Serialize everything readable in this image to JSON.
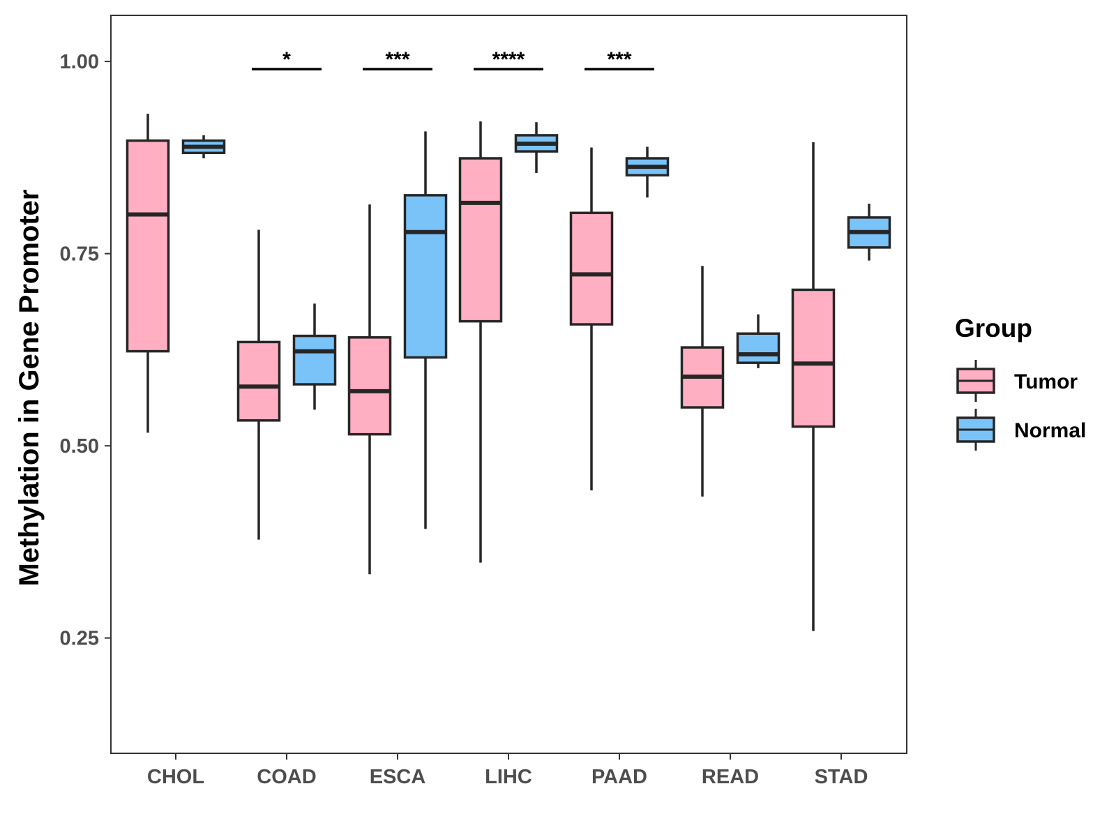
{
  "chart_data": {
    "type": "boxplot",
    "title": "",
    "xlabel": "",
    "ylabel": "Methylation in Gene Promoter",
    "ylim": [
      0.1,
      1.06
    ],
    "yticks": [
      0.25,
      0.5,
      0.75,
      1.0
    ],
    "ytick_labels": [
      "0.25",
      "0.50",
      "0.75",
      "1.00"
    ],
    "categories": [
      "CHOL",
      "COAD",
      "ESCA",
      "LIHC",
      "PAAD",
      "READ",
      "STAD"
    ],
    "legend": {
      "title": "Group",
      "placement": "right",
      "entries": [
        {
          "name": "Tumor",
          "color": "#ffafc1"
        },
        {
          "name": "Normal",
          "color": "#7ac3f9"
        }
      ]
    },
    "series": [
      {
        "name": "Tumor",
        "color": "#ffafc1",
        "boxes": [
          {
            "category": "CHOL",
            "min": 0.517,
            "q1": 0.623,
            "median": 0.801,
            "q3": 0.897,
            "max": 0.932
          },
          {
            "category": "COAD",
            "min": 0.378,
            "q1": 0.533,
            "median": 0.577,
            "q3": 0.635,
            "max": 0.781
          },
          {
            "category": "ESCA",
            "min": 0.333,
            "q1": 0.515,
            "median": 0.571,
            "q3": 0.641,
            "max": 0.814
          },
          {
            "category": "LIHC",
            "min": 0.348,
            "q1": 0.662,
            "median": 0.816,
            "q3": 0.874,
            "max": 0.922
          },
          {
            "category": "PAAD",
            "min": 0.442,
            "q1": 0.658,
            "median": 0.723,
            "q3": 0.803,
            "max": 0.888
          },
          {
            "category": "READ",
            "min": 0.434,
            "q1": 0.55,
            "median": 0.59,
            "q3": 0.628,
            "max": 0.734
          },
          {
            "category": "STAD",
            "min": 0.259,
            "q1": 0.525,
            "median": 0.607,
            "q3": 0.703,
            "max": 0.895
          }
        ]
      },
      {
        "name": "Normal",
        "color": "#7ac3f9",
        "boxes": [
          {
            "category": "CHOL",
            "min": 0.874,
            "q1": 0.881,
            "median": 0.889,
            "q3": 0.897,
            "max": 0.904
          },
          {
            "category": "COAD",
            "min": 0.547,
            "q1": 0.58,
            "median": 0.623,
            "q3": 0.643,
            "max": 0.685
          },
          {
            "category": "ESCA",
            "min": 0.392,
            "q1": 0.615,
            "median": 0.778,
            "q3": 0.826,
            "max": 0.909
          },
          {
            "category": "LIHC",
            "min": 0.855,
            "q1": 0.883,
            "median": 0.893,
            "q3": 0.904,
            "max": 0.921
          },
          {
            "category": "PAAD",
            "min": 0.823,
            "q1": 0.852,
            "median": 0.863,
            "q3": 0.874,
            "max": 0.889
          },
          {
            "category": "READ",
            "min": 0.601,
            "q1": 0.608,
            "median": 0.619,
            "q3": 0.646,
            "max": 0.671
          },
          {
            "category": "STAD",
            "min": 0.741,
            "q1": 0.758,
            "median": 0.778,
            "q3": 0.797,
            "max": 0.815
          }
        ]
      }
    ],
    "significance": [
      {
        "category": "COAD",
        "label": "*"
      },
      {
        "category": "ESCA",
        "label": "***"
      },
      {
        "category": "LIHC",
        "label": "****"
      },
      {
        "category": "PAAD",
        "label": "***"
      }
    ],
    "significance_level": 0.99,
    "grid": false
  }
}
